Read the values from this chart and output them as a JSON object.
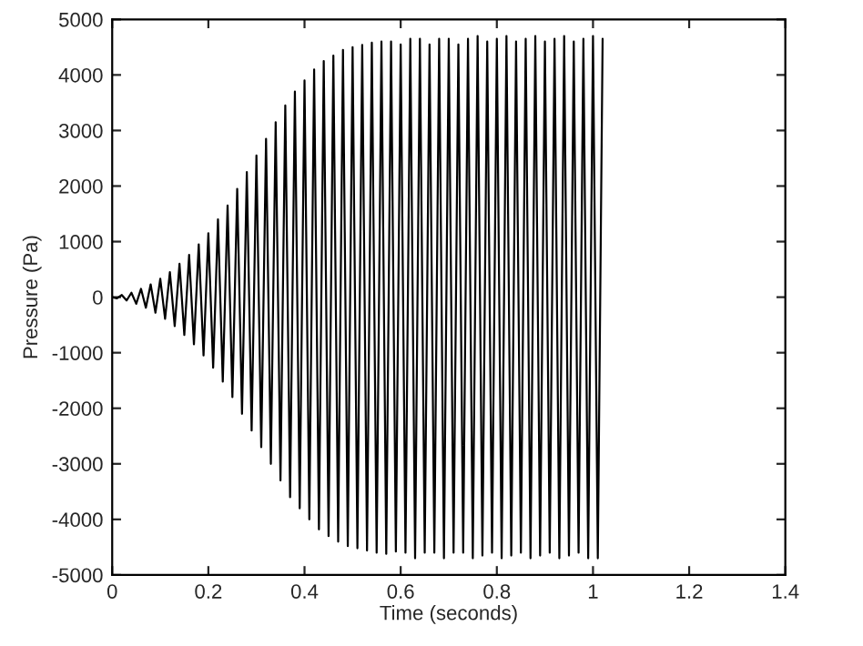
{
  "chart_data": {
    "type": "line",
    "xlabel": "Time (seconds)",
    "ylabel": "Pressure (Pa)",
    "xlim": [
      0,
      1.4
    ],
    "xticks": [
      0,
      0.2,
      0.4,
      0.6,
      0.8,
      1,
      1.2,
      1.4
    ],
    "ylim": [
      -5000,
      5000
    ],
    "yticks": [
      -5000,
      -4000,
      -3000,
      -2000,
      -1000,
      0,
      1000,
      2000,
      3000,
      4000,
      5000
    ],
    "grid": false,
    "marker": "none",
    "line_style": "solid",
    "series": [
      {
        "color": "#000000",
        "x": [
          0,
          0.01,
          0.02,
          0.03,
          0.04,
          0.05,
          0.06,
          0.07,
          0.08,
          0.09,
          0.1,
          0.11,
          0.12,
          0.13,
          0.14,
          0.15,
          0.16,
          0.17,
          0.18,
          0.19,
          0.2,
          0.21,
          0.22,
          0.23,
          0.24,
          0.25,
          0.26,
          0.27,
          0.28,
          0.29,
          0.3,
          0.31,
          0.32,
          0.33,
          0.34,
          0.35,
          0.36,
          0.37,
          0.38,
          0.39,
          0.4,
          0.41,
          0.42,
          0.43,
          0.44,
          0.45,
          0.46,
          0.47,
          0.48,
          0.49,
          0.5,
          0.51,
          0.52,
          0.53,
          0.54,
          0.55,
          0.56,
          0.57,
          0.58,
          0.59,
          0.6,
          0.61,
          0.62,
          0.63,
          0.64,
          0.65,
          0.66,
          0.67,
          0.68,
          0.69,
          0.7,
          0.71,
          0.72,
          0.73,
          0.74,
          0.75,
          0.76,
          0.77,
          0.78,
          0.79,
          0.8,
          0.81,
          0.82,
          0.83,
          0.84,
          0.85,
          0.86,
          0.87,
          0.88,
          0.89,
          0.9,
          0.91,
          0.92,
          0.93,
          0.94,
          0.95,
          0.96,
          0.97,
          0.98,
          0.99,
          1,
          1.01,
          1.02
        ],
        "values": [
          0,
          -20,
          40,
          -60,
          80,
          -120,
          150,
          -190,
          230,
          -280,
          330,
          -390,
          450,
          -520,
          600,
          -680,
          760,
          -850,
          950,
          -1050,
          1150,
          -1270,
          1400,
          -1520,
          1650,
          -1800,
          1950,
          -2100,
          2250,
          -2400,
          2550,
          -2700,
          2850,
          -3000,
          3150,
          -3300,
          3450,
          -3600,
          3700,
          -3800,
          3900,
          -4000,
          4100,
          -4180,
          4250,
          -4300,
          4350,
          -4400,
          4450,
          -4480,
          4500,
          -4520,
          4540,
          -4560,
          4580,
          -4600,
          4600,
          -4620,
          4600,
          -4580,
          4550,
          -4600,
          4650,
          -4700,
          4650,
          -4600,
          4550,
          -4600,
          4650,
          -4700,
          4650,
          -4600,
          4550,
          -4600,
          4650,
          -4700,
          4700,
          -4650,
          4600,
          -4600,
          4650,
          -4700,
          4700,
          -4650,
          4600,
          -4600,
          4650,
          -4700,
          4700,
          -4650,
          4600,
          -4600,
          4650,
          -4700,
          4700,
          -4650,
          4600,
          -4600,
          4650,
          -4700,
          4700,
          -4700,
          4650
        ]
      }
    ]
  }
}
